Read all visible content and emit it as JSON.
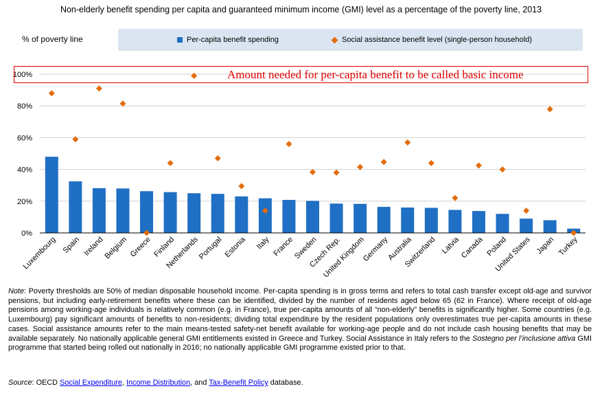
{
  "chart_data": {
    "type": "bar",
    "title": "Non-elderly benefit spending per capita and guaranteed minimum income (GMI) level as a percentage of the poverty line, 2013",
    "ylabel": "% of poverty line",
    "xlabel": "",
    "ylim": [
      0,
      100
    ],
    "yticks": [
      "0%",
      "20%",
      "40%",
      "60%",
      "80%",
      "100%"
    ],
    "ytick_values": [
      0,
      20,
      40,
      60,
      80,
      100
    ],
    "categories": [
      "Luxembourg",
      "Spain",
      "Ireland",
      "Belgium",
      "Greece",
      "Finland",
      "Netherlands",
      "Portugal",
      "Estonia",
      "Italy",
      "France",
      "Sweden",
      "Czech Rep.",
      "United Kingdom",
      "Germany",
      "Australia",
      "Switzerland",
      "Latvia",
      "Canada",
      "Poland",
      "United States",
      "Japan",
      "Turkey"
    ],
    "series": [
      {
        "name": "Per-capita benefit spending",
        "kind": "bar",
        "color": "#1f6fc4",
        "values": [
          48,
          32.5,
          28.2,
          28,
          26.3,
          25.7,
          25,
          24.6,
          23,
          21.8,
          20.8,
          20.2,
          18.5,
          18.3,
          16.4,
          16,
          15.8,
          14.5,
          13.8,
          12,
          9,
          8,
          2.7
        ]
      },
      {
        "name": "Social assistance benefit level (single-person household)",
        "kind": "diamond",
        "color": "#e36c0a",
        "values": [
          88,
          59,
          91,
          81.5,
          0,
          44,
          99,
          47,
          29.5,
          14,
          56,
          38.3,
          38,
          41.5,
          44.7,
          57,
          44,
          22,
          42.5,
          40,
          14,
          78,
          0
        ]
      }
    ],
    "legend_position": "top",
    "annotation": "Amount needed for per-capita benefit to be called basic income"
  },
  "note": {
    "label": "Note",
    "text1": ": Poverty thresholds are 50% of median disposable household income. Per-capita spending is in gross terms and refers to total cash transfer except old-age and survivor pensions, but including early-retirement benefits where these can be identified, divided by the number of residents aged below 65 (62 in France). Where receipt of old-age pensions among working-age individuals is relatively common (e.g. in France), true per-capita amounts of all “non-elderly” benefits is significantly higher. Some countries (e.g. Luxembourg) pay significant amounts of benefits to non-residents; dividing total expenditure by the resident populations only overestimates true per-capita amounts in these cases. Social assistance amounts refer to the main means-tested safety-net benefit available for working-age people and do not include cash housing benefits that may be available separately. No nationally applicable general GMI entitlements existed in Greece and Turkey. Social Assistance in Italy refers to the ",
    "italic": "Sostegno per l’inclusione attiva",
    "text2": " GMI programme that started being rolled out nationally in 2016; no nationally applicable GMI programme existed prior to that."
  },
  "source": {
    "label": "Source",
    "prefix": ": OECD ",
    "link1": "Social Expenditure",
    "sep1": ", ",
    "link2": "Income Distribution",
    "sep2": ", and ",
    "link3": "Tax-Benefit Policy",
    "suffix": " database."
  }
}
